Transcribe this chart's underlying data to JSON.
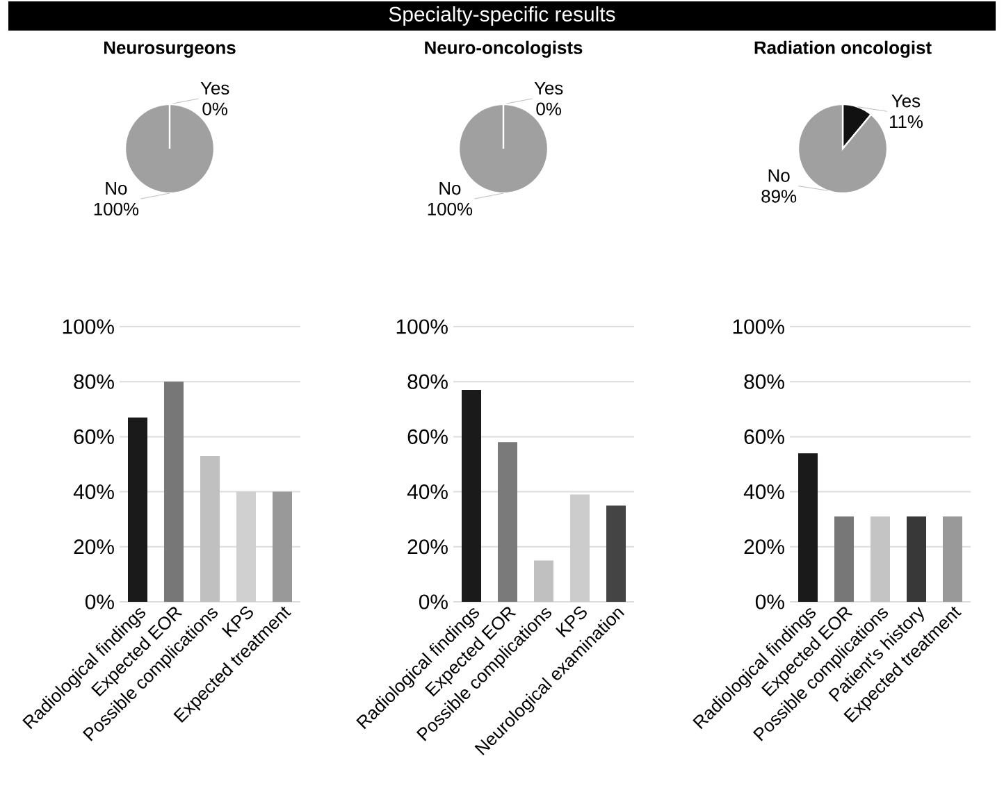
{
  "chart_data": [
    {
      "type": "other",
      "title": "Specialty-specific results"
    },
    {
      "type": "pie",
      "title": "Neurosurgeons",
      "categories": [
        "Yes",
        "No"
      ],
      "values": [
        0,
        100
      ],
      "colors": [
        "#111111",
        "#a0a0a0"
      ],
      "value_labels": [
        "0%",
        "100%"
      ]
    },
    {
      "type": "pie",
      "title": "Neuro-oncologists",
      "categories": [
        "Yes",
        "No"
      ],
      "values": [
        0,
        100
      ],
      "colors": [
        "#111111",
        "#a0a0a0"
      ],
      "value_labels": [
        "0%",
        "100%"
      ]
    },
    {
      "type": "pie",
      "title": "Radiation oncologist",
      "categories": [
        "Yes",
        "No"
      ],
      "values": [
        11,
        89
      ],
      "colors": [
        "#111111",
        "#a0a0a0"
      ],
      "value_labels": [
        "11%",
        "89%"
      ]
    },
    {
      "type": "bar",
      "categories": [
        "Radiological findings",
        "Expected EOR",
        "Possible complications",
        "KPS",
        "Expected treatment"
      ],
      "values": [
        67,
        80,
        53,
        40,
        40
      ],
      "colors": [
        "#1a1a1a",
        "#777777",
        "#c0c0c0",
        "#d0d0d0",
        "#999999"
      ],
      "ylim": [
        0,
        100
      ],
      "yticks": [
        {
          "value": 0,
          "label": "0%"
        },
        {
          "value": 20,
          "label": "20%"
        },
        {
          "value": 40,
          "label": "40%"
        },
        {
          "value": 60,
          "label": "60%"
        },
        {
          "value": 80,
          "label": "80%"
        },
        {
          "value": 100,
          "label": "100%"
        }
      ],
      "grid": "y"
    },
    {
      "type": "bar",
      "categories": [
        "Radiological findings",
        "Expected EOR",
        "Possible complications",
        "KPS",
        "Neurological examination"
      ],
      "values": [
        77,
        58,
        15,
        39,
        35
      ],
      "colors": [
        "#1a1a1a",
        "#7a7a7a",
        "#c0c0c0",
        "#cccccc",
        "#444444"
      ],
      "ylim": [
        0,
        100
      ],
      "yticks": [
        {
          "value": 0,
          "label": "0%"
        },
        {
          "value": 20,
          "label": "20%"
        },
        {
          "value": 40,
          "label": "40%"
        },
        {
          "value": 60,
          "label": "60%"
        },
        {
          "value": 80,
          "label": "80%"
        },
        {
          "value": 100,
          "label": "100%"
        }
      ],
      "grid": "y"
    },
    {
      "type": "bar",
      "categories": [
        "Radiological findings",
        "Expected EOR",
        "Possible complications",
        "Patient's history",
        "Expected treatment"
      ],
      "values": [
        54,
        31,
        31,
        31,
        31
      ],
      "colors": [
        "#1a1a1a",
        "#777777",
        "#c4c4c4",
        "#383838",
        "#999999"
      ],
      "ylim": [
        0,
        100
      ],
      "yticks": [
        {
          "value": 0,
          "label": "0%"
        },
        {
          "value": 20,
          "label": "20%"
        },
        {
          "value": 40,
          "label": "40%"
        },
        {
          "value": 60,
          "label": "60%"
        },
        {
          "value": 80,
          "label": "80%"
        },
        {
          "value": 100,
          "label": "100%"
        }
      ],
      "grid": "y"
    }
  ]
}
